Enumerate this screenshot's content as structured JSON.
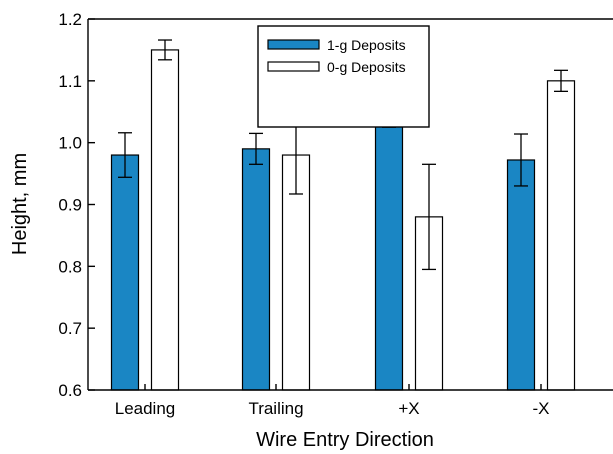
{
  "chart_data": {
    "type": "bar",
    "title": "",
    "xlabel": "Wire Entry Direction",
    "ylabel": "Height, mm",
    "ylim": [
      0.6,
      1.2
    ],
    "yticks": [
      "0.6",
      "0.7",
      "0.8",
      "0.9",
      "1.0",
      "1.1",
      "1.2"
    ],
    "grid": false,
    "legend_position": "top-center",
    "categories": [
      "Leading",
      "Trailing",
      "+X",
      "-X"
    ],
    "series": [
      {
        "name": "1-g Deposits",
        "color": "#1a86c4",
        "values": [
          0.98,
          0.99,
          1.033,
          0.972
        ],
        "errors": [
          0.036,
          0.025,
          0.008,
          0.042
        ]
      },
      {
        "name": "0-g Deposits",
        "color": "#ffffff",
        "values": [
          1.15,
          0.98,
          0.88,
          1.1
        ],
        "errors": [
          0.016,
          0.063,
          0.085,
          0.017
        ]
      }
    ]
  }
}
